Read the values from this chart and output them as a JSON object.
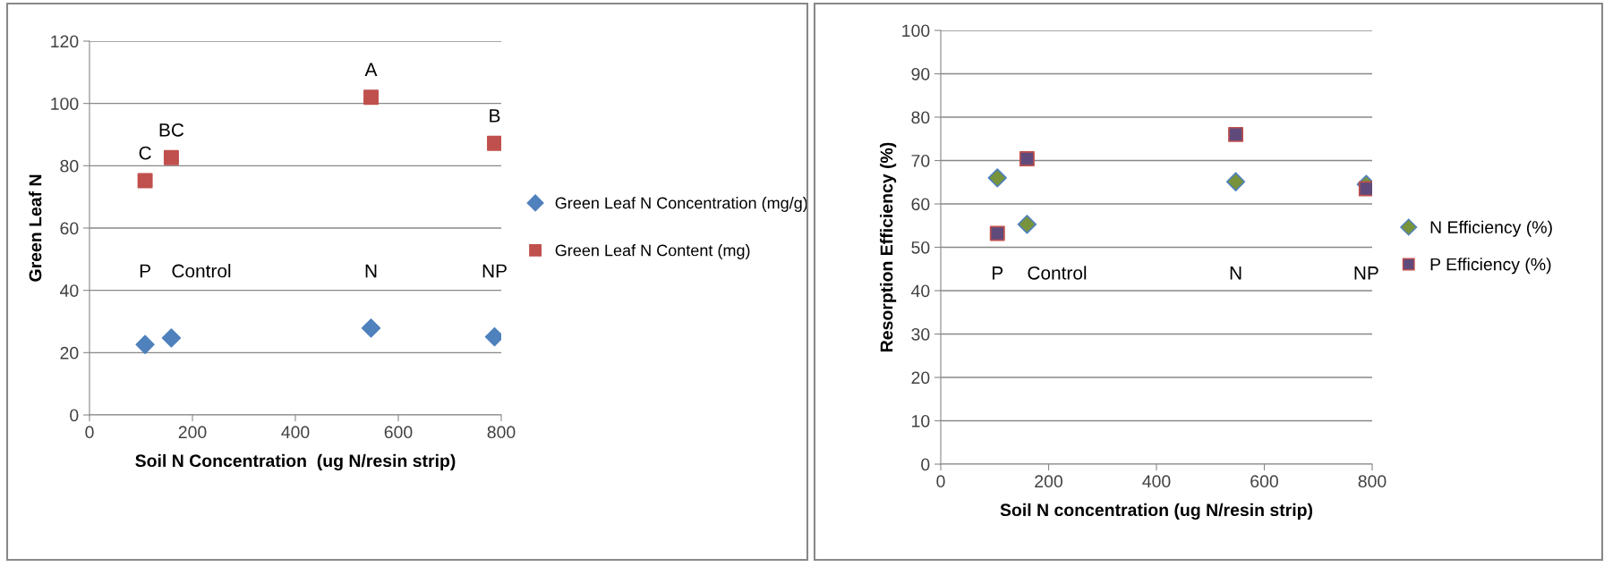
{
  "chart_data": [
    {
      "type": "scatter",
      "xlabel": "Soil N Concentration  (ug N/resin strip)",
      "ylabel": "Green Leaf N",
      "xlim": [
        0,
        800
      ],
      "xticks": [
        0,
        200,
        400,
        600,
        800
      ],
      "ylim": [
        0,
        120
      ],
      "yticks": [
        0,
        20,
        40,
        60,
        80,
        100,
        120
      ],
      "grid": "y",
      "legend": "right",
      "series": [
        {
          "name": "Green Leaf N Concentration (mg/g)",
          "color": "#4f81bd",
          "marker": "diamond",
          "x": [
            108,
            159,
            547,
            787
          ],
          "values": [
            22.6,
            24.7,
            27.9,
            25.1
          ]
        },
        {
          "name": "Green Leaf N Content (mg)",
          "color": "#c0504d",
          "marker": "square",
          "x": [
            108,
            159,
            547,
            787
          ],
          "values": [
            75.2,
            82.6,
            102.0,
            87.2
          ]
        }
      ],
      "annotations": [
        {
          "text": "C",
          "x": 108,
          "y": 75.2
        },
        {
          "text": "BC",
          "x": 159,
          "y": 82.6
        },
        {
          "text": "A",
          "x": 547,
          "y": 102.0
        },
        {
          "text": "B",
          "x": 787,
          "y": 87.2
        },
        "P",
        "Control",
        "N",
        "NP"
      ]
    },
    {
      "type": "scatter",
      "xlabel": "Soil N concentration (ug N/resin strip)",
      "ylabel": "Resorption Efficiency (%)",
      "xlim": [
        0,
        800
      ],
      "xticks": [
        0,
        200,
        400,
        600,
        800
      ],
      "ylim": [
        0,
        100
      ],
      "yticks": [
        0,
        10,
        20,
        30,
        40,
        50,
        60,
        70,
        80,
        90,
        100
      ],
      "grid": "y",
      "legend": "right",
      "series": [
        {
          "name": "N Efficiency (%)",
          "color": "#77933c",
          "marker": "diamond",
          "x": [
            105,
            160,
            547,
            789
          ],
          "values": [
            66.0,
            55.3,
            65.1,
            64.5
          ]
        },
        {
          "name": "P Efficiency (%)",
          "color": "#604a7b",
          "marker": "square",
          "x": [
            105,
            160,
            547,
            789
          ],
          "values": [
            53.2,
            70.4,
            76.0,
            63.5
          ]
        }
      ],
      "annotations": [
        "P",
        "Control",
        "N",
        "NP"
      ]
    }
  ]
}
